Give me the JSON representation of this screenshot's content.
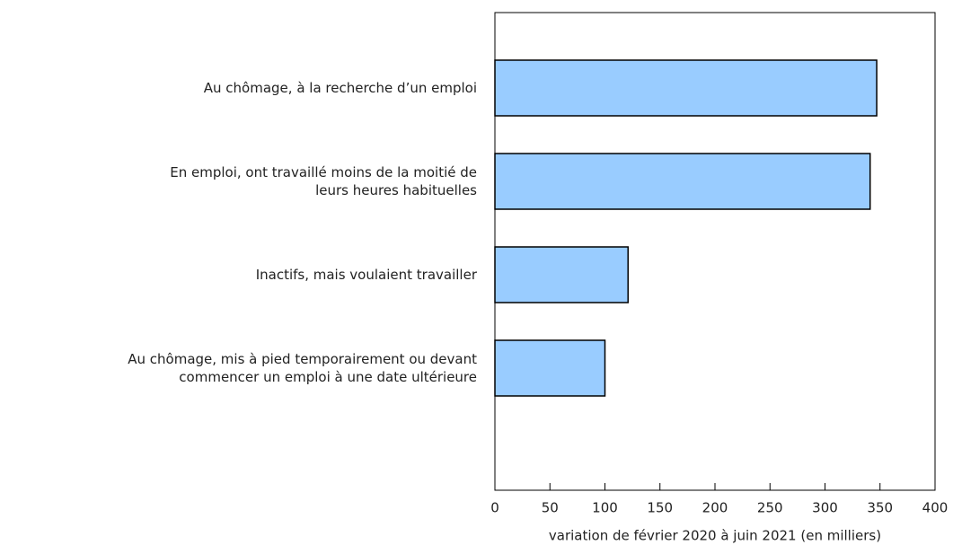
{
  "chart_data": {
    "type": "bar",
    "orientation": "horizontal",
    "categories": [
      [
        "Au chômage, à la recherche d’un emploi"
      ],
      [
        "En emploi, ont travaillé moins de la moitié de",
        "leurs heures habituelles"
      ],
      [
        "Inactifs, mais voulaient travailler"
      ],
      [
        "Au chômage, mis à pied temporairement ou devant",
        "commencer un emploi à une date ultérieure"
      ]
    ],
    "values": [
      347,
      341,
      121,
      100
    ],
    "color": "#99ccff",
    "xlim": [
      0,
      400
    ],
    "xticks": [
      0,
      50,
      100,
      150,
      200,
      250,
      300,
      350,
      400
    ],
    "xlabel": "variation de février 2020 à juin 2021 (en milliers)"
  }
}
